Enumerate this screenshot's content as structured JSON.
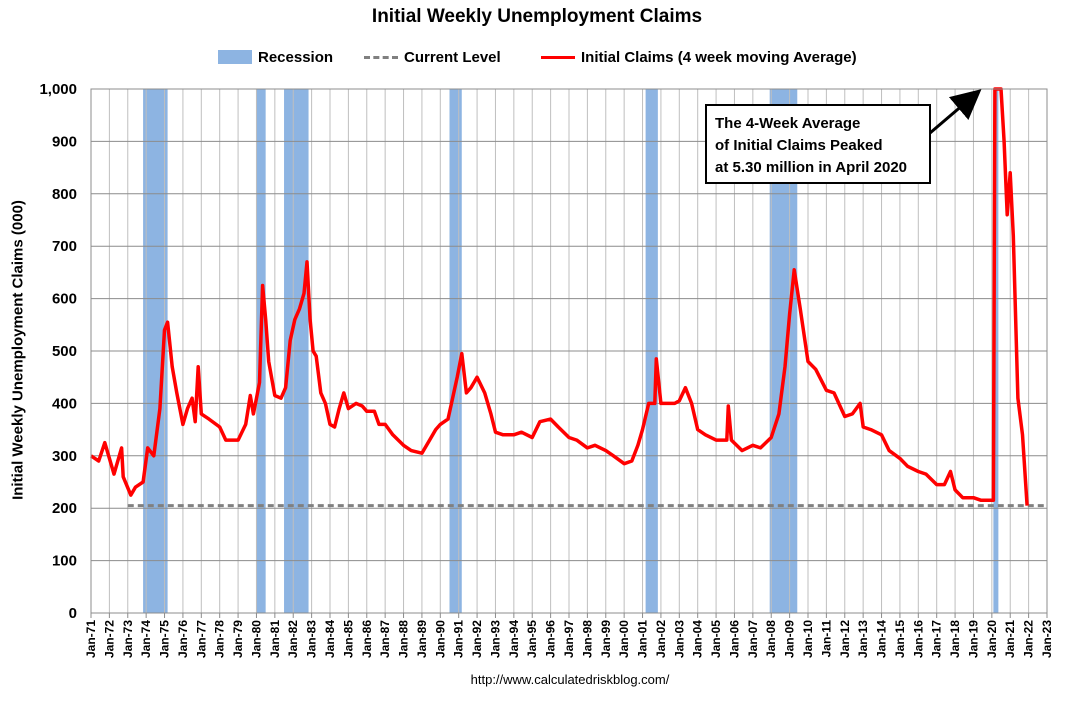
{
  "chart_data": {
    "type": "line",
    "title": "Initial Weekly Unemployment Claims",
    "ylabel": "Initial Weekly Unemployment Claims (000)",
    "xlabel": "",
    "ylim": [
      0,
      1000
    ],
    "xlim": [
      "1971-01",
      "2023-01"
    ],
    "yticks": [
      "0",
      "100",
      "200",
      "300",
      "400",
      "500",
      "600",
      "700",
      "800",
      "900",
      "1,000"
    ],
    "xticks": [
      "Jan-71",
      "Jan-72",
      "Jan-73",
      "Jan-74",
      "Jan-75",
      "Jan-76",
      "Jan-77",
      "Jan-78",
      "Jan-79",
      "Jan-80",
      "Jan-81",
      "Jan-82",
      "Jan-83",
      "Jan-84",
      "Jan-85",
      "Jan-86",
      "Jan-87",
      "Jan-88",
      "Jan-89",
      "Jan-90",
      "Jan-91",
      "Jan-92",
      "Jan-93",
      "Jan-94",
      "Jan-95",
      "Jan-96",
      "Jan-97",
      "Jan-98",
      "Jan-99",
      "Jan-00",
      "Jan-01",
      "Jan-02",
      "Jan-03",
      "Jan-04",
      "Jan-05",
      "Jan-06",
      "Jan-07",
      "Jan-08",
      "Jan-09",
      "Jan-10",
      "Jan-11",
      "Jan-12",
      "Jan-13",
      "Jan-14",
      "Jan-15",
      "Jan-16",
      "Jan-17",
      "Jan-18",
      "Jan-19",
      "Jan-20",
      "Jan-21",
      "Jan-22",
      "Jan-23"
    ],
    "grid": true,
    "legend_position": "top-center",
    "legend": [
      {
        "label": "Recession",
        "kind": "band",
        "color": "#8DB4E2"
      },
      {
        "label": "Current Level",
        "kind": "dashed-line",
        "color": "#808080"
      },
      {
        "label": "Initial Claims (4 week moving Average)",
        "kind": "line",
        "color": "#FF0000"
      }
    ],
    "recessions": [
      [
        "1973-11",
        "1975-03"
      ],
      [
        "1980-01",
        "1980-07"
      ],
      [
        "1981-07",
        "1982-11"
      ],
      [
        "1990-07",
        "1991-03"
      ],
      [
        "2001-03",
        "2001-11"
      ],
      [
        "2007-12",
        "2009-06"
      ],
      [
        "2020-02",
        "2020-04"
      ]
    ],
    "current_level": 205,
    "current_level_start": "1973-01",
    "series": [
      {
        "name": "Initial Claims (4 week moving Average)",
        "color": "#FF0000",
        "points": [
          [
            "1971-01",
            300
          ],
          [
            "1971-06",
            290
          ],
          [
            "1971-10",
            325
          ],
          [
            "1972-01",
            295
          ],
          [
            "1972-04",
            265
          ],
          [
            "1972-09",
            315
          ],
          [
            "1972-10",
            260
          ],
          [
            "1973-03",
            225
          ],
          [
            "1973-06",
            240
          ],
          [
            "1973-11",
            250
          ],
          [
            "1974-02",
            315
          ],
          [
            "1974-06",
            300
          ],
          [
            "1974-10",
            390
          ],
          [
            "1975-01",
            540
          ],
          [
            "1975-03",
            555
          ],
          [
            "1975-06",
            470
          ],
          [
            "1975-09",
            420
          ],
          [
            "1976-01",
            360
          ],
          [
            "1976-04",
            390
          ],
          [
            "1976-07",
            410
          ],
          [
            "1976-09",
            365
          ],
          [
            "1976-11",
            470
          ],
          [
            "1977-01",
            380
          ],
          [
            "1977-06",
            370
          ],
          [
            "1978-01",
            355
          ],
          [
            "1978-05",
            330
          ],
          [
            "1978-10",
            330
          ],
          [
            "1979-01",
            330
          ],
          [
            "1979-06",
            360
          ],
          [
            "1979-09",
            415
          ],
          [
            "1979-11",
            380
          ],
          [
            "1980-01",
            410
          ],
          [
            "1980-03",
            440
          ],
          [
            "1980-05",
            625
          ],
          [
            "1980-07",
            560
          ],
          [
            "1980-09",
            480
          ],
          [
            "1981-01",
            415
          ],
          [
            "1981-05",
            410
          ],
          [
            "1981-08",
            430
          ],
          [
            "1981-11",
            520
          ],
          [
            "1982-02",
            560
          ],
          [
            "1982-05",
            580
          ],
          [
            "1982-08",
            610
          ],
          [
            "1982-10",
            670
          ],
          [
            "1982-12",
            560
          ],
          [
            "1983-02",
            500
          ],
          [
            "1983-04",
            490
          ],
          [
            "1983-07",
            420
          ],
          [
            "1983-10",
            400
          ],
          [
            "1984-01",
            360
          ],
          [
            "1984-04",
            355
          ],
          [
            "1984-07",
            390
          ],
          [
            "1984-10",
            420
          ],
          [
            "1985-01",
            390
          ],
          [
            "1985-06",
            400
          ],
          [
            "1985-10",
            395
          ],
          [
            "1986-01",
            385
          ],
          [
            "1986-06",
            385
          ],
          [
            "1986-09",
            360
          ],
          [
            "1987-01",
            360
          ],
          [
            "1987-06",
            340
          ],
          [
            "1988-01",
            320
          ],
          [
            "1988-06",
            310
          ],
          [
            "1989-01",
            305
          ],
          [
            "1989-06",
            330
          ],
          [
            "1989-10",
            350
          ],
          [
            "1990-01",
            360
          ],
          [
            "1990-06",
            370
          ],
          [
            "1990-09",
            410
          ],
          [
            "1990-12",
            450
          ],
          [
            "1991-03",
            495
          ],
          [
            "1991-06",
            420
          ],
          [
            "1991-09",
            430
          ],
          [
            "1992-01",
            450
          ],
          [
            "1992-06",
            420
          ],
          [
            "1992-10",
            380
          ],
          [
            "1993-01",
            345
          ],
          [
            "1993-06",
            340
          ],
          [
            "1994-01",
            340
          ],
          [
            "1994-06",
            345
          ],
          [
            "1995-01",
            335
          ],
          [
            "1995-06",
            365
          ],
          [
            "1996-01",
            370
          ],
          [
            "1996-06",
            355
          ],
          [
            "1997-01",
            335
          ],
          [
            "1997-06",
            330
          ],
          [
            "1998-01",
            315
          ],
          [
            "1998-06",
            320
          ],
          [
            "1999-01",
            310
          ],
          [
            "1999-06",
            300
          ],
          [
            "2000-01",
            285
          ],
          [
            "2000-06",
            290
          ],
          [
            "2000-10",
            320
          ],
          [
            "2001-01",
            350
          ],
          [
            "2001-05",
            400
          ],
          [
            "2001-09",
            400
          ],
          [
            "2001-10",
            485
          ],
          [
            "2002-01",
            400
          ],
          [
            "2002-06",
            400
          ],
          [
            "2002-10",
            400
          ],
          [
            "2003-01",
            405
          ],
          [
            "2003-05",
            430
          ],
          [
            "2003-09",
            400
          ],
          [
            "2004-01",
            350
          ],
          [
            "2004-06",
            340
          ],
          [
            "2005-01",
            330
          ],
          [
            "2005-08",
            330
          ],
          [
            "2005-09",
            395
          ],
          [
            "2005-11",
            330
          ],
          [
            "2006-06",
            310
          ],
          [
            "2007-01",
            320
          ],
          [
            "2007-06",
            315
          ],
          [
            "2008-01",
            335
          ],
          [
            "2008-06",
            380
          ],
          [
            "2008-10",
            470
          ],
          [
            "2009-01",
            570
          ],
          [
            "2009-04",
            655
          ],
          [
            "2009-08",
            580
          ],
          [
            "2010-01",
            480
          ],
          [
            "2010-06",
            465
          ],
          [
            "2011-01",
            425
          ],
          [
            "2011-06",
            420
          ],
          [
            "2012-01",
            375
          ],
          [
            "2012-06",
            380
          ],
          [
            "2012-11",
            400
          ],
          [
            "2013-01",
            355
          ],
          [
            "2013-06",
            350
          ],
          [
            "2014-01",
            340
          ],
          [
            "2014-06",
            310
          ],
          [
            "2015-01",
            295
          ],
          [
            "2015-06",
            280
          ],
          [
            "2016-01",
            270
          ],
          [
            "2016-06",
            265
          ],
          [
            "2017-01",
            245
          ],
          [
            "2017-06",
            245
          ],
          [
            "2017-10",
            270
          ],
          [
            "2018-01",
            235
          ],
          [
            "2018-06",
            220
          ],
          [
            "2019-01",
            220
          ],
          [
            "2019-06",
            215
          ],
          [
            "2020-01",
            215
          ],
          [
            "2020-02",
            215
          ],
          [
            "2020-03",
            1000
          ],
          [
            "2020-07",
            1000
          ],
          [
            "2020-09",
            900
          ],
          [
            "2020-11",
            760
          ],
          [
            "2021-01",
            840
          ],
          [
            "2021-03",
            720
          ],
          [
            "2021-06",
            410
          ],
          [
            "2021-09",
            340
          ],
          [
            "2021-12",
            205
          ]
        ]
      }
    ],
    "annotation": {
      "lines": [
        "The 4-Week Average",
        "of Initial Claims Peaked",
        "at 5.30 million in April 2020"
      ],
      "arrow_target": [
        "2020-03",
        1000
      ]
    },
    "source": "http://www.calculatedriskblog.com/"
  }
}
